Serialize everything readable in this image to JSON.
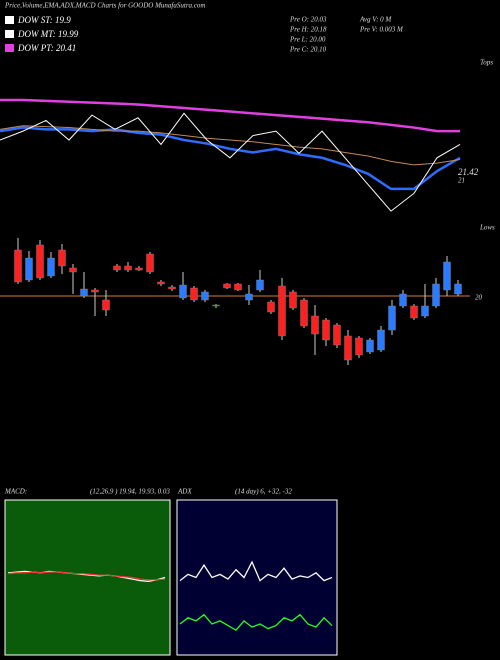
{
  "chart_data": [
    {
      "type": "line",
      "title": "Price,Volume,EMA,ADX,MACD Charts for GOODO MunafaSutra.com",
      "info": [
        "Pre  O: 20.03",
        "Pre  H: 20.18",
        "Pre  L: 20.00",
        "Pre  C: 20.10",
        "Avg V: 0  M",
        "Pre  V: 0.003 M"
      ],
      "annotations": [
        "21.42",
        "21",
        "Tops"
      ],
      "ylim": [
        20.6,
        22.4
      ],
      "series": [
        {
          "name": "DOW ST: 19.9",
          "color": "#2f6bff",
          "values": [
            21.6,
            21.64,
            21.62,
            21.62,
            21.6,
            21.62,
            21.58,
            21.56,
            21.5,
            21.46,
            21.4,
            21.36,
            21.4,
            21.34,
            21.3,
            21.22,
            21.12,
            20.95,
            20.95,
            21.15,
            21.3
          ]
        },
        {
          "name": "DOW MT: 19.99",
          "color": "#c08a5a",
          "values": [
            21.62,
            21.66,
            21.65,
            21.64,
            21.62,
            21.6,
            21.6,
            21.58,
            21.55,
            21.52,
            21.5,
            21.48,
            21.45,
            21.42,
            21.4,
            21.36,
            21.32,
            21.26,
            21.22,
            21.24,
            21.28
          ]
        },
        {
          "name": "DOW PT: 20.41",
          "color": "#e040e0",
          "values": [
            21.95,
            21.95,
            21.94,
            21.93,
            21.92,
            21.91,
            21.9,
            21.88,
            21.86,
            21.84,
            21.82,
            21.8,
            21.78,
            21.76,
            21.74,
            21.72,
            21.7,
            21.67,
            21.64,
            21.6,
            21.6
          ]
        },
        {
          "color": "#ffffff",
          "values": [
            21.5,
            21.6,
            21.72,
            21.5,
            21.78,
            21.62,
            21.75,
            21.45,
            21.8,
            21.5,
            21.3,
            21.55,
            21.6,
            21.35,
            21.6,
            21.3,
            21.0,
            20.7,
            20.9,
            21.3,
            21.45
          ]
        }
      ]
    },
    {
      "type": "candlestick",
      "ylim": [
        19.2,
        20.8
      ],
      "hline": 20,
      "annotations": [
        "20",
        "Lows"
      ],
      "up_color": "#2a7bff",
      "down_color": "#ff2020",
      "open": [
        20.46,
        20.16,
        20.51,
        20.2,
        20.46,
        20.28,
        20,
        20.06,
        19.96,
        20.3,
        20.3,
        20.28,
        20.42,
        20.14,
        20.09,
        19.98,
        20.08,
        19.96,
        19.91,
        20.12,
        20.12,
        19.96,
        20.06,
        19.94,
        20.1,
        20.04,
        19.96,
        19.8,
        19.76,
        19.71,
        19.6,
        19.58,
        19.44,
        19.46,
        19.66,
        19.9,
        19.9,
        19.8,
        19.9,
        20.06,
        20.02
      ],
      "high": [
        20.58,
        20.45,
        20.56,
        20.44,
        20.52,
        20.32,
        20.24,
        20.08,
        20.06,
        20.32,
        20.34,
        20.3,
        20.44,
        20.16,
        20.11,
        20.24,
        20.1,
        20.06,
        19.92,
        20.13,
        20.13,
        20.11,
        20.26,
        19.96,
        20.18,
        20.06,
        19.98,
        19.91,
        19.78,
        19.73,
        19.66,
        19.6,
        19.58,
        19.7,
        19.96,
        20.06,
        19.92,
        20.12,
        20.18,
        20.4,
        20.16
      ],
      "low": [
        20.12,
        20.14,
        20.16,
        20.18,
        20.22,
        20.02,
        19.98,
        19.8,
        19.8,
        20.24,
        20.24,
        20.25,
        20.22,
        20.1,
        20.05,
        19.96,
        19.94,
        19.94,
        19.88,
        20.07,
        20.05,
        19.91,
        20.04,
        19.82,
        19.56,
        19.86,
        19.68,
        19.41,
        19.5,
        19.48,
        19.31,
        19.38,
        19.42,
        19.44,
        19.61,
        19.88,
        19.76,
        19.78,
        19.88,
        20.0,
        20.0
      ],
      "close": [
        20.14,
        20.38,
        20.18,
        20.38,
        20.3,
        20.24,
        20.07,
        20.04,
        19.86,
        20.26,
        20.26,
        20.26,
        20.24,
        20.12,
        20.07,
        20.11,
        19.96,
        20.04,
        19.9,
        20.08,
        20.06,
        20.02,
        20.16,
        19.84,
        19.6,
        19.88,
        19.7,
        19.62,
        19.56,
        19.51,
        19.36,
        19.41,
        19.56,
        19.66,
        19.9,
        20.02,
        19.78,
        19.9,
        20.12,
        20.34,
        20.12
      ]
    },
    {
      "type": "line",
      "title": "MACD:",
      "subtitle": "(12,26,9 ) 19.94, 19.93, 0.03",
      "background": "#0a5c0a",
      "ylim": [
        -1,
        1
      ],
      "series": [
        {
          "color": "#ffffff",
          "values": [
            0.06,
            0.07,
            0.08,
            0.07,
            0.06,
            0.08,
            0.07,
            0.06,
            0.05,
            0.04,
            0.03,
            0.02,
            0.03,
            0.02,
            0.0,
            -0.02,
            -0.04,
            -0.05,
            -0.03,
            0.0
          ]
        },
        {
          "color": "#ff3030",
          "values": [
            0.05,
            0.06,
            0.06,
            0.07,
            0.06,
            0.07,
            0.07,
            0.06,
            0.05,
            0.05,
            0.04,
            0.03,
            0.03,
            0.02,
            0.01,
            0.0,
            -0.02,
            -0.03,
            -0.03,
            -0.02
          ]
        }
      ]
    },
    {
      "type": "line",
      "title": "ADX",
      "subtitle": "(14 day) 6, +32, -32",
      "background": "#000033",
      "ylim": [
        0,
        100
      ],
      "series": [
        {
          "color": "#ffffff",
          "values": [
            48,
            52,
            50,
            58,
            50,
            52,
            49,
            55,
            50,
            60,
            48,
            52,
            50,
            56,
            49,
            51,
            50,
            53,
            48,
            50
          ]
        },
        {
          "color": "#22ff22",
          "values": [
            20,
            24,
            22,
            26,
            20,
            22,
            19,
            16,
            22,
            18,
            20,
            17,
            19,
            24,
            22,
            26,
            20,
            18,
            24,
            19
          ]
        }
      ]
    }
  ]
}
